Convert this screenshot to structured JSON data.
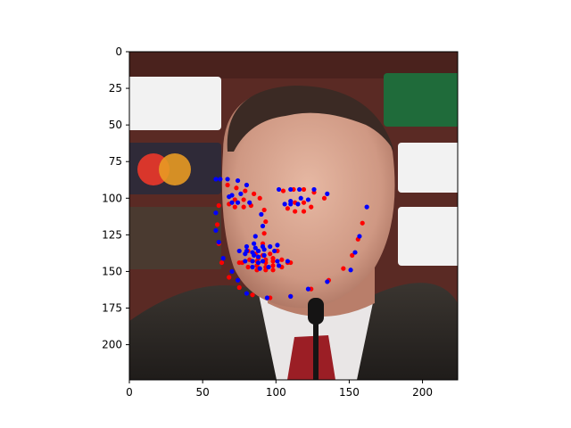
{
  "chart_data": {
    "type": "scatter",
    "title": "",
    "xlabel": "",
    "ylabel": "",
    "xlim": [
      0,
      224
    ],
    "ylim": [
      224,
      0
    ],
    "y_inverted": true,
    "grid": false,
    "background": "photo: face of a man in a suit at a press conference in front of sponsor boards",
    "xticks": [
      0,
      50,
      100,
      150,
      200
    ],
    "yticks": [
      0,
      25,
      50,
      75,
      100,
      125,
      150,
      175,
      200
    ],
    "series": [
      {
        "color": "#ff0000",
        "points": [
          [
            61,
            105
          ],
          [
            60,
            118
          ],
          [
            61,
            131
          ],
          [
            63,
            144
          ],
          [
            68,
            154
          ],
          [
            75,
            161
          ],
          [
            84,
            166
          ],
          [
            96,
            168
          ],
          [
            110,
            167
          ],
          [
            124,
            162
          ],
          [
            136,
            156
          ],
          [
            146,
            148
          ],
          [
            152,
            139
          ],
          [
            156,
            128
          ],
          [
            159,
            117
          ],
          [
            67,
            91
          ],
          [
            73,
            93
          ],
          [
            79,
            95
          ],
          [
            85,
            97
          ],
          [
            89,
            100
          ],
          [
            105,
            95
          ],
          [
            112,
            94
          ],
          [
            119,
            94
          ],
          [
            126,
            96
          ],
          [
            133,
            100
          ],
          [
            92,
            108
          ],
          [
            93,
            116
          ],
          [
            92,
            124
          ],
          [
            91,
            131
          ],
          [
            81,
            136
          ],
          [
            86,
            138
          ],
          [
            91,
            139
          ],
          [
            96,
            138
          ],
          [
            101,
            136
          ],
          [
            68,
            104
          ],
          [
            72,
            101
          ],
          [
            78,
            101
          ],
          [
            83,
            105
          ],
          [
            78,
            106
          ],
          [
            72,
            106
          ],
          [
            108,
            107
          ],
          [
            113,
            103
          ],
          [
            119,
            103
          ],
          [
            124,
            106
          ],
          [
            119,
            109
          ],
          [
            113,
            109
          ],
          [
            75,
            144
          ],
          [
            82,
            142
          ],
          [
            88,
            141
          ],
          [
            93,
            142
          ],
          [
            98,
            141
          ],
          [
            104,
            142
          ],
          [
            110,
            144
          ],
          [
            104,
            147
          ],
          [
            98,
            149
          ],
          [
            93,
            149
          ],
          [
            87,
            149
          ],
          [
            81,
            147
          ],
          [
            77,
            144
          ],
          [
            87,
            143
          ],
          [
            93,
            144
          ],
          [
            98,
            143
          ],
          [
            108,
            144
          ],
          [
            98,
            146
          ],
          [
            93,
            147
          ],
          [
            87,
            146
          ]
        ]
      },
      {
        "color": "#0000ff",
        "points": [
          [
            59,
            110
          ],
          [
            59,
            122
          ],
          [
            61,
            130
          ],
          [
            64,
            141
          ],
          [
            70,
            150
          ],
          [
            74,
            156
          ],
          [
            80,
            165
          ],
          [
            94,
            168
          ],
          [
            110,
            167
          ],
          [
            122,
            162
          ],
          [
            135,
            157
          ],
          [
            151,
            149
          ],
          [
            154,
            137
          ],
          [
            157,
            126
          ],
          [
            162,
            106
          ],
          [
            59,
            87
          ],
          [
            62,
            87
          ],
          [
            67,
            87
          ],
          [
            74,
            88
          ],
          [
            80,
            91
          ],
          [
            102,
            94
          ],
          [
            110,
            94
          ],
          [
            116,
            94
          ],
          [
            126,
            94
          ],
          [
            135,
            97
          ],
          [
            90,
            111
          ],
          [
            91,
            119
          ],
          [
            86,
            126
          ],
          [
            85,
            131
          ],
          [
            80,
            133
          ],
          [
            86,
            134
          ],
          [
            91,
            133
          ],
          [
            96,
            133
          ],
          [
            101,
            132
          ],
          [
            68,
            99
          ],
          [
            70,
            98
          ],
          [
            76,
            97
          ],
          [
            82,
            103
          ],
          [
            74,
            103
          ],
          [
            70,
            103
          ],
          [
            106,
            104
          ],
          [
            110,
            102
          ],
          [
            117,
            100
          ],
          [
            122,
            101
          ],
          [
            115,
            104
          ],
          [
            110,
            104
          ],
          [
            75,
            136
          ],
          [
            80,
            136
          ],
          [
            84,
            137
          ],
          [
            88,
            136
          ],
          [
            92,
            135
          ],
          [
            99,
            136
          ],
          [
            108,
            143
          ],
          [
            102,
            146
          ],
          [
            95,
            147
          ],
          [
            89,
            148
          ],
          [
            84,
            147
          ],
          [
            79,
            143
          ],
          [
            79,
            138
          ],
          [
            85,
            139
          ],
          [
            88,
            140
          ],
          [
            92,
            139
          ],
          [
            101,
            143
          ],
          [
            91,
            143
          ],
          [
            88,
            144
          ],
          [
            84,
            143
          ]
        ]
      }
    ]
  }
}
